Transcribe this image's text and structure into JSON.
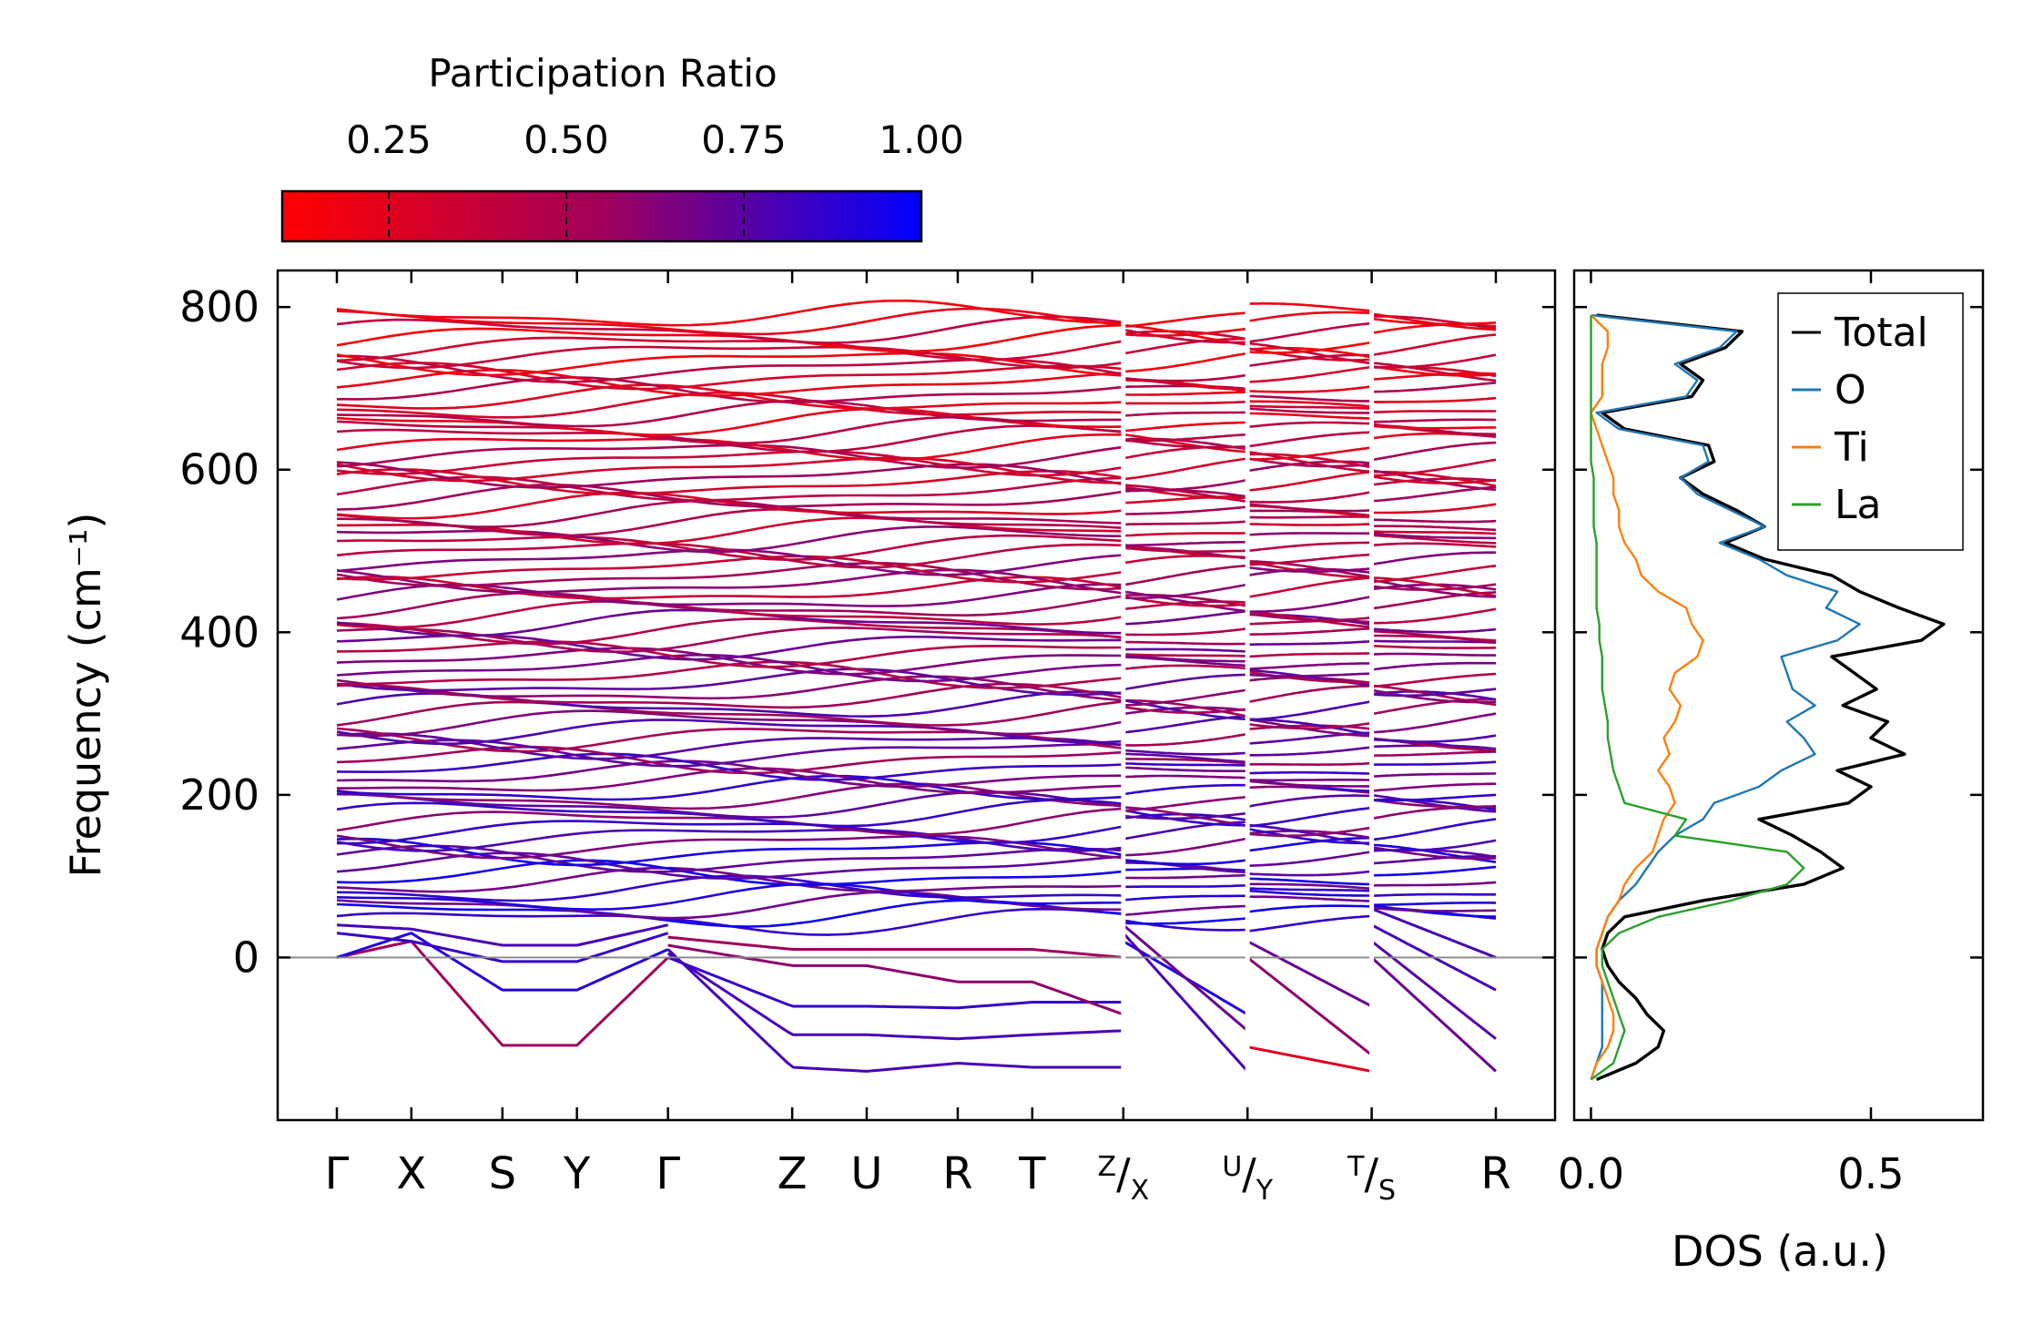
{
  "chart_data": [
    {
      "type": "line",
      "name": "phonon-band-structure",
      "ylabel": "Frequency (cm⁻¹)",
      "ylim": [
        -200,
        845
      ],
      "y_ticks": [
        0,
        200,
        400,
        600,
        800
      ],
      "y_tick_labels": [
        "0",
        "200",
        "400",
        "600",
        "800"
      ],
      "k_labels": [
        "Γ",
        "X",
        "S",
        "Y",
        "Γ",
        "Z",
        "U",
        "R",
        "T",
        "Z|X",
        "U|Y",
        "T|S",
        "R"
      ],
      "k_positions": [
        0,
        0.45,
        1.0,
        1.45,
        2.0,
        2.75,
        3.2,
        3.75,
        4.2,
        4.75,
        5.5,
        6.25,
        7.0
      ],
      "segment_breaks": [
        4.75,
        5.5,
        6.25
      ],
      "zero_line": 0,
      "colorbar": {
        "label": "Participation Ratio",
        "range": [
          0.1,
          1.0
        ],
        "ticks": [
          0.25,
          0.5,
          0.75,
          1.0
        ],
        "tick_labels": [
          "0.25",
          "0.50",
          "0.75",
          "1.00"
        ],
        "color_low": "#ff0000",
        "color_mid": "#a0005a",
        "color_high": "#0000ff"
      },
      "bands_low": [
        {
          "k": [
            0,
            0.45,
            1.0,
            1.45,
            2.0
          ],
          "y": [
            0,
            20,
            -108,
            -108,
            0
          ],
          "pr": 0.55
        },
        {
          "k": [
            0,
            0.45,
            1.0,
            1.45,
            2.0
          ],
          "y": [
            0,
            30,
            -40,
            -40,
            10
          ],
          "pr": 0.9
        },
        {
          "k": [
            0,
            0.45,
            1.0,
            1.45,
            2.0
          ],
          "y": [
            30,
            20,
            -5,
            -5,
            30
          ],
          "pr": 0.85
        },
        {
          "k": [
            0,
            0.45,
            1.0,
            1.45,
            2.0
          ],
          "y": [
            40,
            35,
            15,
            15,
            40
          ],
          "pr": 0.8
        },
        {
          "k": [
            2.0,
            2.75,
            3.2,
            3.75,
            4.2,
            4.75
          ],
          "y": [
            0,
            -60,
            -60,
            -62,
            -55,
            -55
          ],
          "pr": 0.85
        },
        {
          "k": [
            2.0,
            2.75,
            3.2,
            3.75,
            4.2,
            4.75
          ],
          "y": [
            5,
            -95,
            -95,
            -100,
            -95,
            -90
          ],
          "pr": 0.8
        },
        {
          "k": [
            2.0,
            2.75,
            3.2,
            3.75,
            4.2,
            4.75
          ],
          "y": [
            10,
            -135,
            -140,
            -130,
            -135,
            -135
          ],
          "pr": 0.8
        },
        {
          "k": [
            2.0,
            2.75,
            3.2,
            3.75,
            4.2,
            4.75
          ],
          "y": [
            15,
            -10,
            -10,
            -30,
            -30,
            -70
          ],
          "pr": 0.6
        },
        {
          "k": [
            2.0,
            2.75,
            3.2,
            3.75,
            4.2,
            4.75
          ],
          "y": [
            25,
            10,
            10,
            10,
            10,
            0
          ],
          "pr": 0.55
        },
        {
          "k": [
            4.75,
            5.5
          ],
          "y": [
            20,
            -70
          ],
          "pr": 0.9
        },
        {
          "k": [
            4.75,
            5.5
          ],
          "y": [
            30,
            -140
          ],
          "pr": 0.8
        },
        {
          "k": [
            4.75,
            5.5
          ],
          "y": [
            40,
            -90
          ],
          "pr": 0.7
        },
        {
          "k": [
            5.5,
            6.25
          ],
          "y": [
            -110,
            -140
          ],
          "pr": 0.25
        },
        {
          "k": [
            5.5,
            6.25
          ],
          "y": [
            0,
            -120
          ],
          "pr": 0.6
        },
        {
          "k": [
            5.5,
            6.25
          ],
          "y": [
            20,
            -60
          ],
          "pr": 0.7
        },
        {
          "k": [
            6.25,
            7.0
          ],
          "y": [
            0,
            -140
          ],
          "pr": 0.7
        },
        {
          "k": [
            6.25,
            7.0
          ],
          "y": [
            20,
            -100
          ],
          "pr": 0.75
        },
        {
          "k": [
            6.25,
            7.0
          ],
          "y": [
            40,
            -40
          ],
          "pr": 0.8
        },
        {
          "k": [
            6.25,
            7.0
          ],
          "y": [
            60,
            0
          ],
          "pr": 0.8
        }
      ],
      "band_grid": {
        "count": 80,
        "y_min": 45,
        "y_max": 790,
        "pr_high_freq": 0.25,
        "pr_low_freq": 0.85
      }
    },
    {
      "type": "line",
      "name": "density-of-states",
      "xlabel": "DOS (a.u.)",
      "xlim": [
        -0.03,
        0.7
      ],
      "x_ticks": [
        0.0,
        0.5
      ],
      "x_tick_labels": [
        "0.0",
        "0.5"
      ],
      "legend_position": "top-right",
      "series": [
        {
          "name": "Total",
          "color": "#000000",
          "freq": [
            -150,
            -130,
            -110,
            -90,
            -70,
            -50,
            -30,
            -10,
            10,
            30,
            50,
            70,
            90,
            110,
            130,
            150,
            170,
            190,
            210,
            230,
            250,
            270,
            290,
            310,
            330,
            350,
            370,
            390,
            410,
            430,
            450,
            470,
            490,
            510,
            530,
            550,
            570,
            590,
            610,
            630,
            650,
            670,
            690,
            710,
            730,
            750,
            770,
            790
          ],
          "values": [
            0.01,
            0.08,
            0.12,
            0.13,
            0.1,
            0.08,
            0.05,
            0.03,
            0.02,
            0.03,
            0.06,
            0.2,
            0.38,
            0.45,
            0.41,
            0.36,
            0.3,
            0.46,
            0.5,
            0.44,
            0.56,
            0.5,
            0.53,
            0.45,
            0.51,
            0.47,
            0.43,
            0.59,
            0.63,
            0.55,
            0.48,
            0.43,
            0.31,
            0.24,
            0.31,
            0.26,
            0.2,
            0.16,
            0.22,
            0.21,
            0.06,
            0.02,
            0.18,
            0.2,
            0.16,
            0.24,
            0.27,
            0.01
          ]
        },
        {
          "name": "O",
          "color": "#1f77b4",
          "freq": [
            -150,
            -130,
            -110,
            -90,
            -70,
            -50,
            -30,
            -10,
            10,
            30,
            50,
            70,
            90,
            110,
            130,
            150,
            170,
            190,
            210,
            230,
            250,
            270,
            290,
            310,
            330,
            350,
            370,
            390,
            410,
            430,
            450,
            470,
            490,
            510,
            530,
            550,
            570,
            590,
            610,
            630,
            650,
            670,
            690,
            710,
            730,
            750,
            770,
            790
          ],
          "values": [
            0.0,
            0.01,
            0.02,
            0.02,
            0.02,
            0.02,
            0.02,
            0.01,
            0.01,
            0.02,
            0.03,
            0.05,
            0.08,
            0.1,
            0.12,
            0.15,
            0.2,
            0.22,
            0.3,
            0.34,
            0.4,
            0.38,
            0.35,
            0.4,
            0.36,
            0.35,
            0.34,
            0.44,
            0.48,
            0.42,
            0.44,
            0.35,
            0.3,
            0.23,
            0.31,
            0.25,
            0.19,
            0.16,
            0.21,
            0.2,
            0.05,
            0.01,
            0.17,
            0.19,
            0.15,
            0.23,
            0.26,
            0.0
          ]
        },
        {
          "name": "Ti",
          "color": "#ff7f0e",
          "freq": [
            -150,
            -130,
            -110,
            -90,
            -70,
            -50,
            -30,
            -10,
            10,
            30,
            50,
            70,
            90,
            110,
            130,
            150,
            170,
            190,
            210,
            230,
            250,
            270,
            290,
            310,
            330,
            350,
            370,
            390,
            410,
            430,
            450,
            470,
            490,
            510,
            530,
            550,
            570,
            590,
            610,
            630,
            650,
            670,
            690,
            710,
            730,
            750,
            770,
            790
          ],
          "values": [
            0.0,
            0.01,
            0.03,
            0.04,
            0.04,
            0.03,
            0.02,
            0.01,
            0.01,
            0.02,
            0.03,
            0.05,
            0.06,
            0.08,
            0.11,
            0.12,
            0.13,
            0.15,
            0.14,
            0.12,
            0.14,
            0.13,
            0.15,
            0.16,
            0.14,
            0.15,
            0.19,
            0.2,
            0.18,
            0.17,
            0.12,
            0.09,
            0.08,
            0.06,
            0.05,
            0.05,
            0.04,
            0.04,
            0.03,
            0.02,
            0.01,
            0.0,
            0.02,
            0.02,
            0.02,
            0.03,
            0.03,
            0.0
          ]
        },
        {
          "name": "La",
          "color": "#2ca02c",
          "freq": [
            -150,
            -130,
            -110,
            -90,
            -70,
            -50,
            -30,
            -10,
            10,
            30,
            50,
            70,
            90,
            110,
            130,
            150,
            170,
            190,
            210,
            230,
            250,
            270,
            290,
            310,
            330,
            350,
            370,
            390,
            410,
            430,
            450,
            470,
            490,
            510,
            530,
            550,
            570,
            590,
            610,
            630,
            650,
            670,
            690,
            710,
            730,
            750,
            770,
            790
          ],
          "values": [
            0.0,
            0.04,
            0.05,
            0.06,
            0.05,
            0.04,
            0.03,
            0.02,
            0.02,
            0.05,
            0.12,
            0.25,
            0.35,
            0.38,
            0.35,
            0.15,
            0.17,
            0.06,
            0.05,
            0.04,
            0.035,
            0.03,
            0.03,
            0.025,
            0.02,
            0.02,
            0.02,
            0.015,
            0.015,
            0.01,
            0.01,
            0.01,
            0.01,
            0.01,
            0.005,
            0.005,
            0.005,
            0.005,
            0.0,
            0.0,
            0.0,
            0.0,
            0.0,
            0.0,
            0.0,
            0.0,
            0.0,
            0.0
          ]
        }
      ]
    }
  ]
}
